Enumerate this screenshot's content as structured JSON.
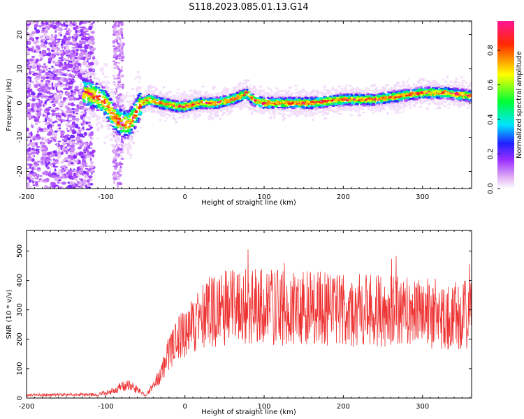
{
  "title": "S118.2023.085.01.13.G14",
  "chart_data": [
    {
      "type": "heatmap",
      "xlabel": "Height of straight line (km)",
      "ylabel": "Frequency (Hz)",
      "xlim": [
        -200,
        362
      ],
      "ylim": [
        -25,
        24
      ],
      "xticks": [
        -200,
        -100,
        0,
        100,
        200,
        300
      ],
      "yticks": [
        -20,
        -10,
        0,
        10,
        20
      ],
      "colorbar": {
        "label": "Normalized spectral amplitude",
        "range": [
          0,
          0.97
        ],
        "ticks": [
          "0.0",
          "0.2",
          "0.4",
          "0.6",
          "0.8"
        ],
        "tick_values": [
          0.0,
          0.2,
          0.4,
          0.6,
          0.8
        ],
        "colors": [
          "#ffffff",
          "#e4b8f4",
          "#9b30ff",
          "#2020ff",
          "#00e5ff",
          "#00ff33",
          "#ffff00",
          "#ff2a00",
          "#ff1493"
        ]
      },
      "ridge": {
        "x": [
          -125,
          -112,
          -100,
          -90,
          -80,
          -70,
          -62,
          -55,
          -45,
          -30,
          -10,
          0,
          20,
          40,
          60,
          70,
          78,
          85,
          100,
          130,
          160,
          200,
          240,
          270,
          300,
          330,
          362
        ],
        "y": [
          3,
          2,
          0,
          -4,
          -6,
          -6,
          -3,
          0,
          1,
          0,
          -1,
          -1,
          0,
          0,
          1,
          2,
          3,
          1,
          0,
          0,
          0,
          1,
          1,
          2,
          3,
          3,
          2
        ]
      }
    },
    {
      "type": "line",
      "xlabel": "Height of straight line (km)",
      "ylabel": "SNR (10 * v/v)",
      "xlim": [
        -200,
        362
      ],
      "ylim": [
        0,
        570
      ],
      "xticks": [
        -200,
        -100,
        0,
        100,
        200,
        300
      ],
      "yticks": [
        0,
        100,
        200,
        300,
        400,
        500
      ],
      "color": "#ee3333",
      "envelope": {
        "x": [
          -200,
          -110,
          -90,
          -75,
          -60,
          -50,
          -40,
          -30,
          -20,
          -10,
          0,
          10,
          20,
          30,
          50,
          80,
          100,
          150,
          200,
          250,
          300,
          330,
          362
        ],
        "y": [
          10,
          12,
          25,
          45,
          30,
          10,
          40,
          80,
          160,
          200,
          220,
          245,
          270,
          290,
          305,
          310,
          310,
          305,
          300,
          295,
          290,
          285,
          280
        ]
      }
    }
  ]
}
